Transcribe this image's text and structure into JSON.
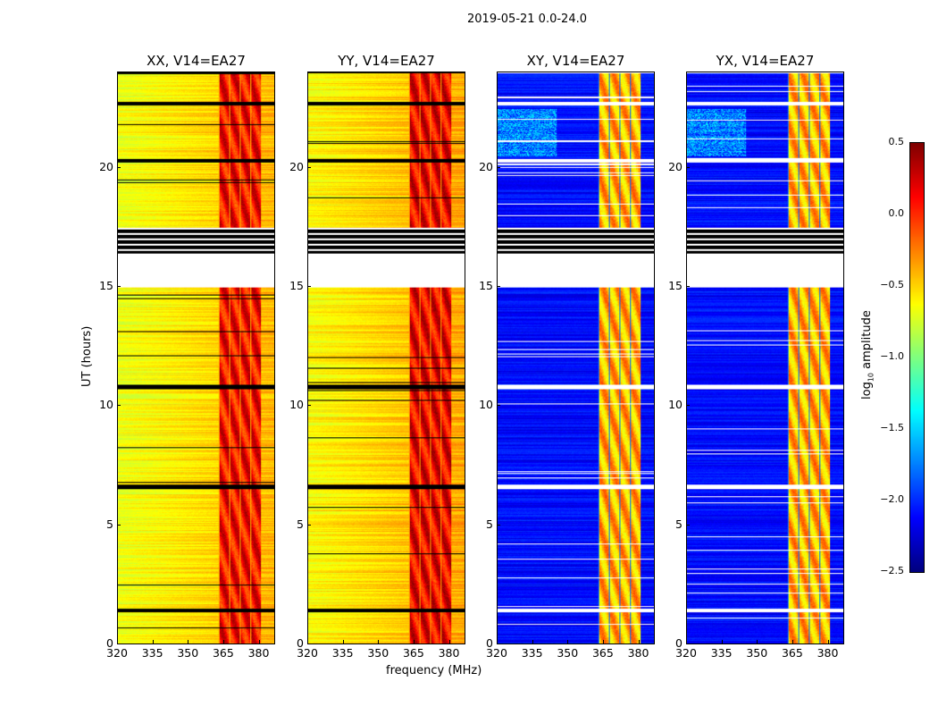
{
  "chart_data": {
    "type": "heatmap",
    "title": "2019-05-21 0.0-24.0",
    "xlabel": "frequency (MHz)",
    "ylabel": "UT (hours)",
    "xlim": [
      320,
      387
    ],
    "ylim": [
      0,
      24
    ],
    "xticks": [
      "320",
      "335",
      "350",
      "365",
      "380"
    ],
    "yticks": [
      "0",
      "5",
      "10",
      "15",
      "20"
    ],
    "panels": [
      {
        "title": "XX, V14=EA27",
        "polarization": "XX",
        "background_level": -0.6,
        "rfi_level": 0.1,
        "flag_color": "#000000"
      },
      {
        "title": "YY, V14=EA27",
        "polarization": "YY",
        "background_level": -0.55,
        "rfi_level": 0.15,
        "flag_color": "#000000"
      },
      {
        "title": "XY, V14=EA27",
        "polarization": "XY",
        "background_level": -2.1,
        "rfi_level": -0.4,
        "flag_color": "#ffffff"
      },
      {
        "title": "YX, V14=EA27",
        "polarization": "YX",
        "background_level": -2.1,
        "rfi_level": -0.4,
        "flag_color": "#ffffff"
      }
    ],
    "rfi_band_mhz": [
      363,
      381
    ],
    "flagged_hours_blank": [
      15.0,
      16.4
    ],
    "flagged_hours_striped": [
      16.4,
      17.5
    ],
    "flagged_lines_hours": [
      1.4,
      6.6,
      10.8,
      20.3,
      22.7
    ],
    "colorbar": {
      "label": "log10 amplitude",
      "label_main": "log",
      "label_sub": "10",
      "label_rest": " amplitude",
      "colormap": "jet",
      "range": [
        -2.5,
        0.5
      ],
      "ticks": [
        "0.5",
        "0.0",
        "−0.5",
        "−1.0",
        "−1.5",
        "−2.0",
        "−2.5"
      ]
    }
  }
}
